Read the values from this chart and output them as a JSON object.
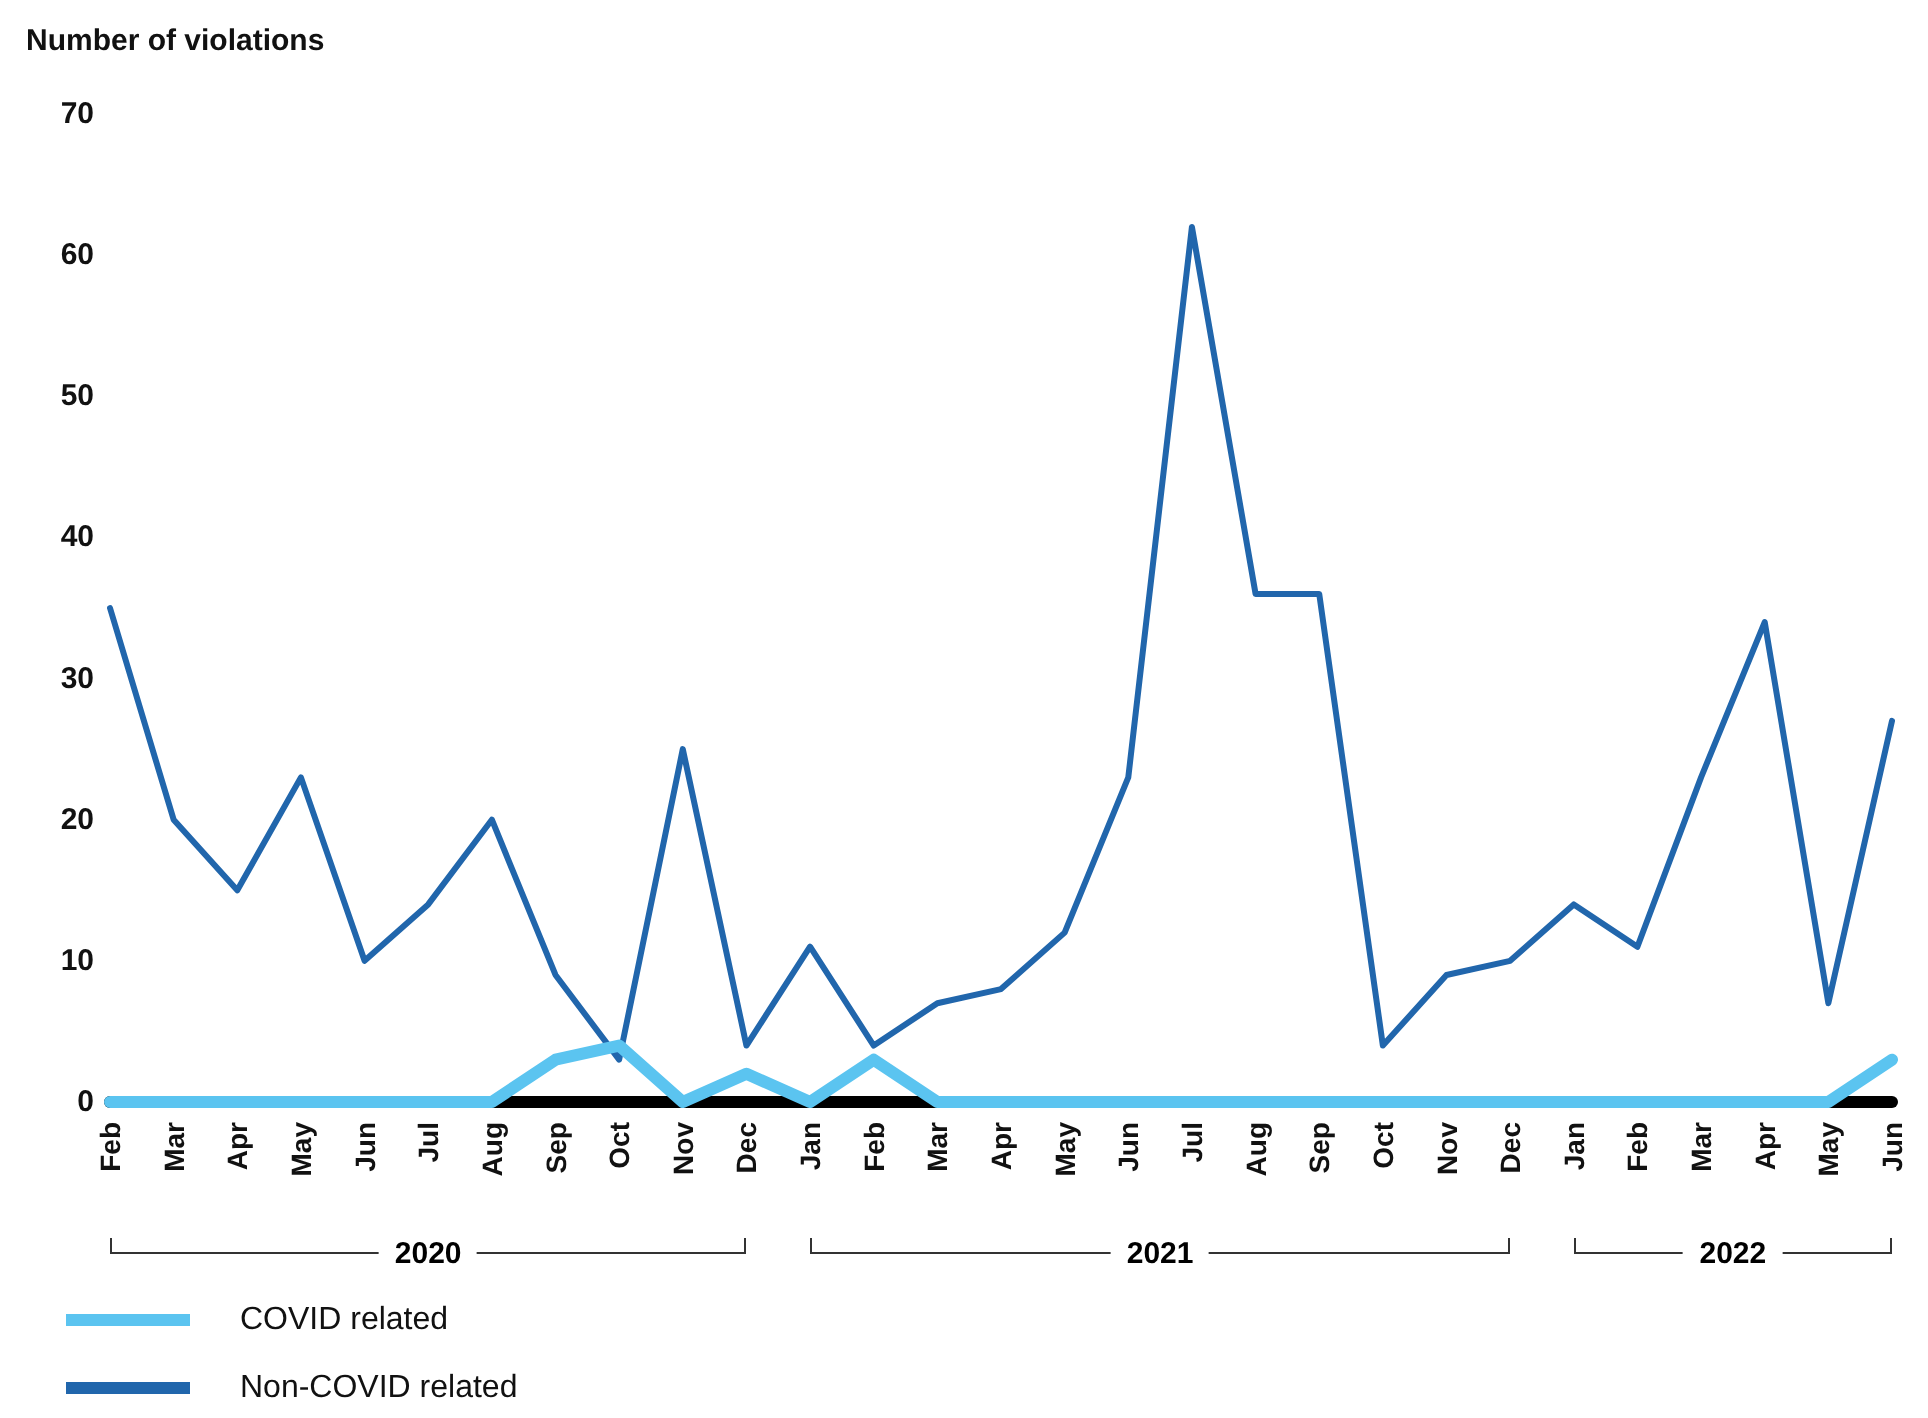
{
  "chart_data": {
    "type": "line",
    "ylabel": "Number of violations",
    "x": [
      "2020-02",
      "2020-03",
      "2020-04",
      "2020-05",
      "2020-06",
      "2020-07",
      "2020-08",
      "2020-09",
      "2020-10",
      "2020-11",
      "2020-12",
      "2021-01",
      "2021-02",
      "2021-03",
      "2021-04",
      "2021-05",
      "2021-06",
      "2021-07",
      "2021-08",
      "2021-09",
      "2021-10",
      "2021-11",
      "2021-12",
      "2022-01",
      "2022-02",
      "2022-03",
      "2022-04",
      "2022-05",
      "2022-06"
    ],
    "xticks": [
      {
        "value": "2020-02",
        "label": "Feb"
      },
      {
        "value": "2020-03",
        "label": "Mar"
      },
      {
        "value": "2020-04",
        "label": "Apr"
      },
      {
        "value": "2020-05",
        "label": "May"
      },
      {
        "value": "2020-06",
        "label": "Jun"
      },
      {
        "value": "2020-07",
        "label": "Jul"
      },
      {
        "value": "2020-08",
        "label": "Aug"
      },
      {
        "value": "2020-09",
        "label": "Sep"
      },
      {
        "value": "2020-10",
        "label": "Oct"
      },
      {
        "value": "2020-11",
        "label": "Nov"
      },
      {
        "value": "2020-12",
        "label": "Dec"
      },
      {
        "value": "2021-01",
        "label": "Jan"
      },
      {
        "value": "2021-02",
        "label": "Feb"
      },
      {
        "value": "2021-03",
        "label": "Mar"
      },
      {
        "value": "2021-04",
        "label": "Apr"
      },
      {
        "value": "2021-05",
        "label": "May"
      },
      {
        "value": "2021-06",
        "label": "Jun"
      },
      {
        "value": "2021-07",
        "label": "Jul"
      },
      {
        "value": "2021-08",
        "label": "Aug"
      },
      {
        "value": "2021-09",
        "label": "Sep"
      },
      {
        "value": "2021-10",
        "label": "Oct"
      },
      {
        "value": "2021-11",
        "label": "Nov"
      },
      {
        "value": "2021-12",
        "label": "Dec"
      },
      {
        "value": "2022-01",
        "label": "Jan"
      },
      {
        "value": "2022-02",
        "label": "Feb"
      },
      {
        "value": "2022-03",
        "label": "Mar"
      },
      {
        "value": "2022-04",
        "label": "Apr"
      },
      {
        "value": "2022-05",
        "label": "May"
      },
      {
        "value": "2022-06",
        "label": "Jun"
      }
    ],
    "xlim": [
      "2020-02",
      "2022-06"
    ],
    "annotations": [
      "2020",
      "2021",
      "2022"
    ],
    "series": [
      {
        "name": "COVID related",
        "color": "#5bc4f0",
        "values": [
          0,
          0,
          0,
          0,
          0,
          0,
          0,
          3,
          4,
          0,
          2,
          0,
          3,
          0,
          0,
          0,
          0,
          0,
          0,
          0,
          0,
          0,
          0,
          0,
          0,
          0,
          0,
          0,
          3
        ]
      },
      {
        "name": "Non-COVID related",
        "color": "#2166ac",
        "values": [
          35,
          20,
          15,
          23,
          10,
          14,
          20,
          9,
          3,
          25,
          4,
          11,
          4,
          7,
          8,
          12,
          23,
          62,
          36,
          36,
          4,
          9,
          10,
          14,
          11,
          23,
          34,
          7,
          27
        ]
      }
    ],
    "ylim": [
      0,
      70
    ],
    "yticks": [
      0,
      10,
      20,
      30,
      40,
      50,
      60,
      70
    ],
    "grid": false,
    "legend": "bottom left",
    "marker": "none",
    "line_style": "solid"
  }
}
